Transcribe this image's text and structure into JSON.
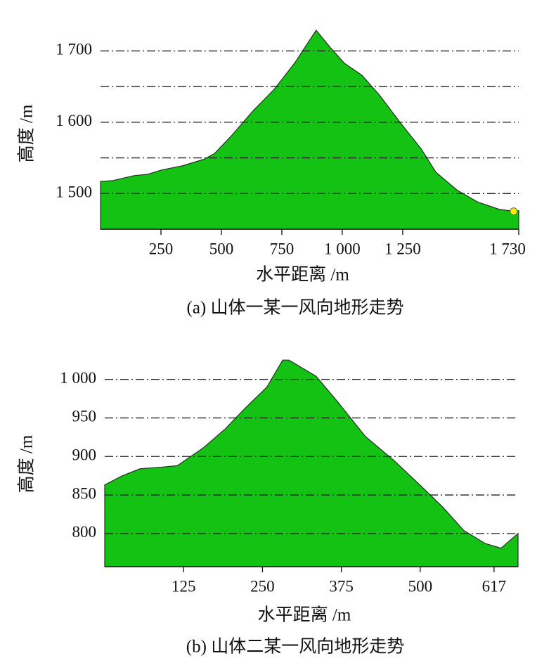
{
  "chart_data": [
    {
      "type": "area",
      "caption": "(a)  山体一某一风向地形走势",
      "x_label": "水平距离 /m",
      "y_label": "高度 /m",
      "color": "#14c214",
      "x": [
        0,
        49,
        137,
        195,
        253,
        340,
        427,
        471,
        544,
        631,
        718,
        805,
        892,
        950,
        1008,
        1081,
        1154,
        1241,
        1328,
        1387,
        1474,
        1561,
        1648,
        1709,
        1730
      ],
      "values": [
        1517,
        1518,
        1525,
        1527,
        1533,
        1539,
        1548,
        1556,
        1582,
        1616,
        1646,
        1684,
        1729,
        1705,
        1683,
        1666,
        1638,
        1599,
        1562,
        1530,
        1505,
        1488,
        1478,
        1475,
        1476
      ],
      "xlim": [
        0,
        1730
      ],
      "ylim": [
        1450,
        1732
      ],
      "xticks": [
        250,
        500,
        750,
        {
          "value": 1000,
          "label": "1 000"
        },
        {
          "value": 1250,
          "label": "1 250"
        },
        {
          "value": 1730,
          "label": "1 730"
        }
      ],
      "yticks": [
        {
          "value": 1500,
          "label": "1 500"
        },
        {
          "value": 1600,
          "label": "1 600"
        },
        {
          "value": 1700,
          "label": "1 700"
        }
      ],
      "minor_gridlines": [
        1550,
        1650
      ],
      "marker": {
        "x": 1709,
        "y": 1475,
        "color": "#ffee00"
      }
    },
    {
      "type": "area",
      "caption": "(b)  山体二某一风向地形走势",
      "x_label": "水平距离 /m",
      "y_label": "高度 /m",
      "color": "#14c214",
      "x": [
        0,
        28,
        56,
        89,
        115,
        156,
        190,
        223,
        257,
        282,
        292,
        335,
        368,
        413,
        458,
        502,
        536,
        569,
        603,
        628,
        655
      ],
      "values": [
        863,
        875,
        884,
        886,
        888,
        911,
        935,
        963,
        990,
        1025,
        1025,
        1004,
        972,
        926,
        895,
        861,
        834,
        804,
        787,
        781,
        800
      ],
      "xlim": [
        0,
        655
      ],
      "ylim": [
        757,
        1027
      ],
      "xticks": [
        125,
        250,
        375,
        500,
        617
      ],
      "yticks": [
        800,
        850,
        900,
        950,
        {
          "value": 1000,
          "label": "1 000"
        }
      ]
    }
  ]
}
